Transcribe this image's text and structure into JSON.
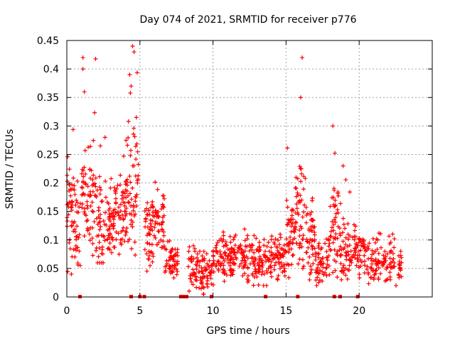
{
  "chart_data": {
    "type": "scatter",
    "title": "Day 074 of 2021, SRMTID for receiver p776",
    "xlabel": "GPS time / hours",
    "ylabel": "SRMTID / TECUs",
    "xlim": [
      0,
      25
    ],
    "ylim": [
      0,
      0.45
    ],
    "x_ticks": [
      0,
      5,
      10,
      15,
      20
    ],
    "x_tick_labels": [
      "0",
      "5",
      "10",
      "15",
      "20"
    ],
    "y_ticks": [
      0,
      0.05,
      0.1,
      0.15,
      0.2,
      0.25,
      0.3,
      0.35,
      0.4,
      0.45
    ],
    "y_tick_labels": [
      "0",
      "0.05",
      "0.1",
      "0.15",
      "0.2",
      "0.25",
      "0.3",
      "0.35",
      "0.4",
      "0.45"
    ],
    "grid": true,
    "marker": "+",
    "series": [
      {
        "name": "SRMTID",
        "color": "#ff0000",
        "segments": [
          {
            "t_start": 0.0,
            "t_end": 1.0,
            "base": 0.14,
            "spread": 0.07,
            "min": 0.04,
            "max": 0.3,
            "n": 70
          },
          {
            "t_start": 1.0,
            "t_end": 2.0,
            "base": 0.17,
            "spread": 0.07,
            "min": 0.07,
            "max": 0.42,
            "n": 70
          },
          {
            "t_start": 2.0,
            "t_end": 3.0,
            "base": 0.13,
            "spread": 0.06,
            "min": 0.06,
            "max": 0.29,
            "n": 70
          },
          {
            "t_start": 3.0,
            "t_end": 4.0,
            "base": 0.14,
            "spread": 0.06,
            "min": 0.03,
            "max": 0.26,
            "n": 70
          },
          {
            "t_start": 4.0,
            "t_end": 4.9,
            "base": 0.18,
            "spread": 0.09,
            "min": 0.06,
            "max": 0.44,
            "n": 70
          },
          {
            "t_start": 5.3,
            "t_end": 6.0,
            "base": 0.11,
            "spread": 0.06,
            "min": 0.04,
            "max": 0.2,
            "n": 50
          },
          {
            "t_start": 6.0,
            "t_end": 6.7,
            "base": 0.13,
            "spread": 0.05,
            "min": 0.05,
            "max": 0.22,
            "n": 45
          },
          {
            "t_start": 6.7,
            "t_end": 7.6,
            "base": 0.06,
            "spread": 0.03,
            "min": 0.01,
            "max": 0.1,
            "n": 55
          },
          {
            "t_start": 8.3,
            "t_end": 9.0,
            "base": 0.05,
            "spread": 0.03,
            "min": 0.01,
            "max": 0.09,
            "n": 40
          },
          {
            "t_start": 9.0,
            "t_end": 10.0,
            "base": 0.04,
            "spread": 0.03,
            "min": 0.005,
            "max": 0.08,
            "n": 60
          },
          {
            "t_start": 10.0,
            "t_end": 11.0,
            "base": 0.07,
            "spread": 0.03,
            "min": 0.02,
            "max": 0.12,
            "n": 60
          },
          {
            "t_start": 11.0,
            "t_end": 12.0,
            "base": 0.07,
            "spread": 0.03,
            "min": 0.02,
            "max": 0.12,
            "n": 60
          },
          {
            "t_start": 12.0,
            "t_end": 13.0,
            "base": 0.06,
            "spread": 0.03,
            "min": 0.02,
            "max": 0.13,
            "n": 60
          },
          {
            "t_start": 13.0,
            "t_end": 14.0,
            "base": 0.06,
            "spread": 0.03,
            "min": 0.02,
            "max": 0.11,
            "n": 60
          },
          {
            "t_start": 14.0,
            "t_end": 15.0,
            "base": 0.07,
            "spread": 0.03,
            "min": 0.02,
            "max": 0.11,
            "n": 60
          },
          {
            "t_start": 15.0,
            "t_end": 15.6,
            "base": 0.1,
            "spread": 0.06,
            "min": 0.03,
            "max": 0.27,
            "n": 45
          },
          {
            "t_start": 15.6,
            "t_end": 16.4,
            "base": 0.15,
            "spread": 0.08,
            "min": 0.05,
            "max": 0.42,
            "n": 55
          },
          {
            "t_start": 16.4,
            "t_end": 17.0,
            "base": 0.1,
            "spread": 0.05,
            "min": 0.03,
            "max": 0.19,
            "n": 45
          },
          {
            "t_start": 17.0,
            "t_end": 18.0,
            "base": 0.06,
            "spread": 0.03,
            "min": 0.02,
            "max": 0.11,
            "n": 60
          },
          {
            "t_start": 18.0,
            "t_end": 18.6,
            "base": 0.12,
            "spread": 0.08,
            "min": 0.03,
            "max": 0.3,
            "n": 45
          },
          {
            "t_start": 18.6,
            "t_end": 19.5,
            "base": 0.08,
            "spread": 0.05,
            "min": 0.03,
            "max": 0.23,
            "n": 55
          },
          {
            "t_start": 19.5,
            "t_end": 20.5,
            "base": 0.08,
            "spread": 0.03,
            "min": 0.03,
            "max": 0.14,
            "n": 55
          },
          {
            "t_start": 20.5,
            "t_end": 21.5,
            "base": 0.06,
            "spread": 0.03,
            "min": 0.02,
            "max": 0.12,
            "n": 55
          },
          {
            "t_start": 21.5,
            "t_end": 22.9,
            "base": 0.06,
            "spread": 0.03,
            "min": 0.02,
            "max": 0.13,
            "n": 65
          }
        ],
        "peaks": [
          {
            "x": 1.1,
            "y": 0.42
          },
          {
            "x": 1.1,
            "y": 0.4
          },
          {
            "x": 1.2,
            "y": 0.36
          },
          {
            "x": 4.5,
            "y": 0.44
          },
          {
            "x": 4.6,
            "y": 0.43
          },
          {
            "x": 4.3,
            "y": 0.39
          },
          {
            "x": 4.4,
            "y": 0.37
          },
          {
            "x": 16.1,
            "y": 0.42
          },
          {
            "x": 16.0,
            "y": 0.35
          },
          {
            "x": 18.2,
            "y": 0.3
          },
          {
            "x": 18.9,
            "y": 0.23
          }
        ],
        "gap_markers_hours": [
          0.9,
          4.4,
          5.0,
          5.3,
          7.8,
          8.0,
          8.2,
          9.9,
          13.6,
          15.8,
          18.3,
          18.7,
          19.9
        ]
      }
    ]
  }
}
